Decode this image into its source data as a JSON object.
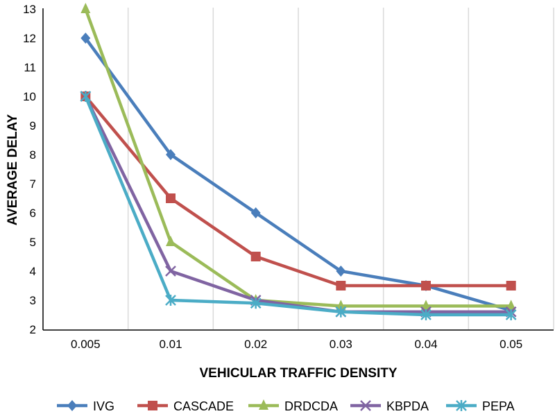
{
  "chart_data": {
    "type": "line",
    "title": "",
    "xlabel": "VEHICULAR TRAFFIC DENSITY",
    "ylabel": "AVERAGE DELAY",
    "categories": [
      "0.005",
      "0.01",
      "0.02",
      "0.03",
      "0.04",
      "0.05"
    ],
    "ylim": [
      2,
      13
    ],
    "yticks": [
      "2",
      "3",
      "4",
      "5",
      "6",
      "7",
      "8",
      "9",
      "10",
      "11",
      "12",
      "13"
    ],
    "grid": "vertical",
    "legend_position": "bottom",
    "series": [
      {
        "name": "IVG",
        "color": "#4a7ebb",
        "marker": "diamond",
        "values": [
          12,
          8,
          6,
          4,
          3.5,
          2.65
        ]
      },
      {
        "name": "CASCADE",
        "color": "#c0504d",
        "marker": "square",
        "values": [
          10,
          6.5,
          4.5,
          3.5,
          3.5,
          3.5
        ]
      },
      {
        "name": "DRDCDA",
        "color": "#9bbb59",
        "marker": "triangle",
        "values": [
          13,
          5,
          3,
          2.8,
          2.8,
          2.8
        ]
      },
      {
        "name": "KBPDA",
        "color": "#8064a2",
        "marker": "x",
        "values": [
          10,
          4,
          3,
          2.6,
          2.6,
          2.6
        ]
      },
      {
        "name": "PEPA",
        "color": "#4bacc6",
        "marker": "star",
        "values": [
          10,
          3,
          2.9,
          2.6,
          2.5,
          2.5
        ]
      }
    ]
  }
}
